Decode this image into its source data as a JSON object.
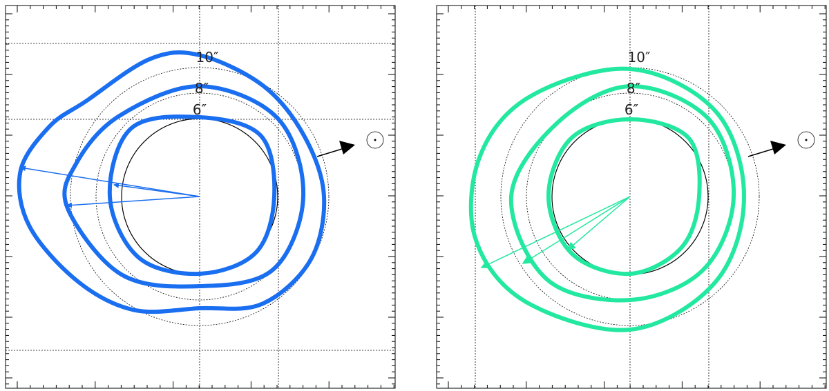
{
  "panels": [
    {
      "labels": [
        "10″",
        "8″",
        "6″"
      ]
    },
    {
      "labels": [
        "10″",
        "8″",
        "6″"
      ]
    }
  ]
}
